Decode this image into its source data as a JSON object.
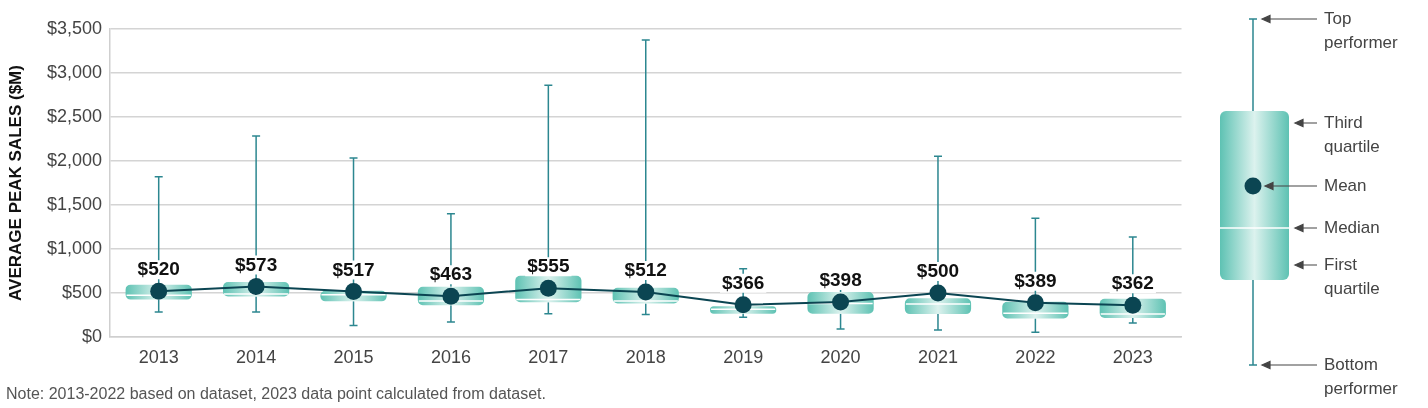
{
  "chart_data": {
    "type": "box",
    "ylabel": "AVERAGE PEAK SALES ($M)",
    "categories": [
      "2013",
      "2014",
      "2015",
      "2016",
      "2017",
      "2018",
      "2019",
      "2020",
      "2021",
      "2022",
      "2023"
    ],
    "series": [
      {
        "color": "#5ec2b3",
        "boxes": [
          {
            "low": 285,
            "q1": 425,
            "median": 475,
            "q3": 595,
            "high": 1820
          },
          {
            "low": 285,
            "q1": 460,
            "median": 490,
            "q3": 625,
            "high": 2285
          },
          {
            "low": 130,
            "q1": 405,
            "median": 480,
            "q3": 525,
            "high": 2035
          },
          {
            "low": 170,
            "q1": 360,
            "median": 410,
            "q3": 570,
            "high": 1400
          },
          {
            "low": 265,
            "q1": 395,
            "median": 425,
            "q3": 695,
            "high": 2860
          },
          {
            "low": 255,
            "q1": 380,
            "median": 410,
            "q3": 560,
            "high": 3375
          },
          {
            "low": 225,
            "q1": 265,
            "median": 315,
            "q3": 350,
            "high": 775
          },
          {
            "low": 90,
            "q1": 265,
            "median": 380,
            "q3": 510,
            "high": 715
          },
          {
            "low": 80,
            "q1": 260,
            "median": 375,
            "q3": 440,
            "high": 2055
          },
          {
            "low": 55,
            "q1": 210,
            "median": 270,
            "q3": 400,
            "high": 1350
          },
          {
            "low": 160,
            "q1": 215,
            "median": 260,
            "q3": 435,
            "high": 1135
          }
        ]
      },
      {
        "type": "line",
        "color": "#0b4552",
        "marker": "circle",
        "values": [
          520,
          573,
          517,
          463,
          555,
          512,
          366,
          398,
          500,
          389,
          362
        ],
        "value_labels": [
          "$520",
          "$573",
          "$517",
          "$463",
          "$555",
          "$512",
          "$366",
          "$398",
          "$500",
          "$389",
          "$362"
        ]
      }
    ],
    "ylim": [
      0,
      3500
    ],
    "yticks": [
      {
        "value": 0,
        "label": "$0"
      },
      {
        "value": 500,
        "label": "$500"
      },
      {
        "value": 1000,
        "label": "$1,000"
      },
      {
        "value": 1500,
        "label": "$1,500"
      },
      {
        "value": 2000,
        "label": "$2,000"
      },
      {
        "value": 2500,
        "label": "$2,500"
      },
      {
        "value": 3000,
        "label": "$3,000"
      },
      {
        "value": 3500,
        "label": "$3,500"
      }
    ],
    "grid": "y",
    "annotations": [
      "Top performer",
      "Third quartile",
      "Mean",
      "Median",
      "First quartile",
      "Bottom performer",
      "Note: 2013-2022 based on dataset, 2023 data point calculated from dataset."
    ]
  }
}
